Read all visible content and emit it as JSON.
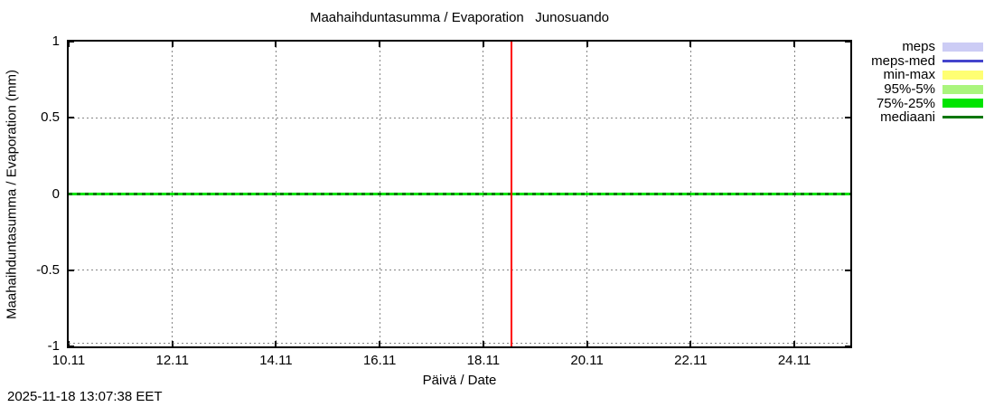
{
  "footer": {
    "timestamp": "2025-11-18 13:07:38 EET"
  },
  "colors": {
    "background": "#ffffff",
    "grid": "#858585",
    "axis": "#000000"
  },
  "chart_data": {
    "type": "line",
    "title": "Maahaihduntasumma / Evaporation   Junosuando",
    "xlabel": "Päivä / Date",
    "ylabel": "Maahaihduntasumma / Evaporation (mm)",
    "ylim": [
      -1,
      1
    ],
    "y_ticks": [
      {
        "label": "1",
        "value": 1
      },
      {
        "label": "0.5",
        "value": 0.5
      },
      {
        "label": "0",
        "value": 0
      },
      {
        "label": "-0.5",
        "value": -0.5
      },
      {
        "label": "-1",
        "value": -1
      }
    ],
    "x_axis": {
      "start_day": 10,
      "end_day": 25.08,
      "month": 11,
      "ticks": [
        {
          "label": "10.11",
          "day": 10
        },
        {
          "label": "12.11",
          "day": 12
        },
        {
          "label": "14.11",
          "day": 14
        },
        {
          "label": "16.11",
          "day": 16
        },
        {
          "label": "18.11",
          "day": 18
        },
        {
          "label": "20.11",
          "day": 20
        },
        {
          "label": "22.11",
          "day": 22
        },
        {
          "label": "24.11",
          "day": 24
        }
      ]
    },
    "grid": true,
    "legend_position": "outside-top-right",
    "series": [
      {
        "name": "meps",
        "style": "band",
        "color": "#ccccf5",
        "value": 0
      },
      {
        "name": "meps-med",
        "style": "line",
        "color": "#4444cc",
        "value": 0
      },
      {
        "name": "min-max",
        "style": "band",
        "color": "#ffff73",
        "value": 0
      },
      {
        "name": "95%-5%",
        "style": "band",
        "color": "#aaf57d",
        "value": 0
      },
      {
        "name": "75%-25%",
        "style": "band",
        "color": "#00e400",
        "value": 0
      },
      {
        "name": "mediaani",
        "style": "line",
        "color": "#007700",
        "value": 0
      }
    ],
    "series_note": "All series are flat at 0 mm across the entire visible date range",
    "time_marker": {
      "day": 18.55,
      "color": "#ff0000"
    }
  }
}
